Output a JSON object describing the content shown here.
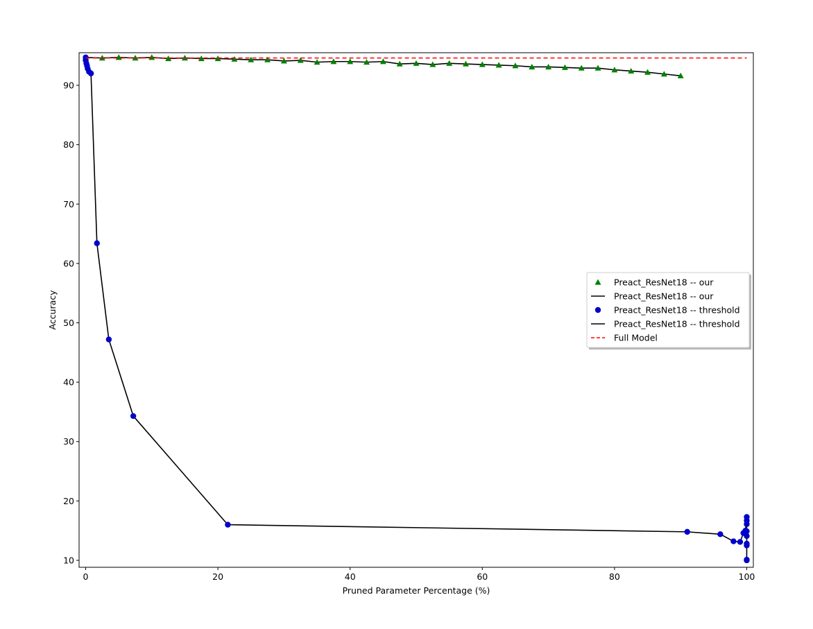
{
  "chart_data": {
    "type": "line",
    "xlabel": "Pruned Parameter Percentage (%)",
    "ylabel": "Accuracy",
    "xlim": [
      -1,
      101
    ],
    "ylim": [
      8.83,
      95.49
    ],
    "xticks": [
      0,
      20,
      40,
      60,
      80,
      100
    ],
    "yticks": [
      10,
      20,
      30,
      40,
      50,
      60,
      70,
      80,
      90
    ],
    "grid": false,
    "legend": "center right",
    "series": [
      {
        "name": "Preact_ResNet18 -- our",
        "color": "#008000",
        "marker": "triangle",
        "line_name": "Preact_ResNet18 -- our",
        "line_color": "#000000",
        "x": [
          0,
          2.5,
          5,
          7.5,
          10,
          12.5,
          15,
          17.5,
          20,
          22.5,
          25,
          27.5,
          30,
          32.5,
          35,
          37.5,
          40,
          42.5,
          45,
          47.5,
          50,
          52.5,
          55,
          57.5,
          60,
          62.5,
          65,
          67.5,
          70,
          72.5,
          75,
          77.5,
          80,
          82.5,
          85,
          87.5,
          90
        ],
        "values": [
          94.7,
          94.6,
          94.7,
          94.6,
          94.7,
          94.5,
          94.6,
          94.5,
          94.5,
          94.4,
          94.3,
          94.3,
          94.1,
          94.2,
          93.9,
          94.0,
          94.0,
          93.9,
          94.0,
          93.6,
          93.7,
          93.5,
          93.7,
          93.6,
          93.5,
          93.4,
          93.3,
          93.1,
          93.1,
          93.0,
          92.9,
          92.9,
          92.6,
          92.4,
          92.2,
          91.9,
          91.6
        ]
      },
      {
        "name": "Preact_ResNet18 -- threshold",
        "color": "#0000cc",
        "marker": "circle",
        "line_name": "Preact_ResNet18 -- threshold",
        "line_color": "#000000",
        "x": [
          0,
          0,
          0.1,
          0.2,
          0.3,
          0.5,
          0.8,
          1.7,
          3.5,
          7.2,
          21.5,
          91,
          96,
          98,
          99,
          99.5,
          99.8,
          100,
          100,
          100,
          100,
          100,
          100,
          100,
          100,
          100
        ],
        "values": [
          94.7,
          94.2,
          93.7,
          93.3,
          92.8,
          92.3,
          92.0,
          63.4,
          47.2,
          34.3,
          16.0,
          14.8,
          14.4,
          13.2,
          13.1,
          14.6,
          15.0,
          17.3,
          16.7,
          16.1,
          14.9,
          14.1,
          12.8,
          12.5,
          10.1,
          10.0
        ]
      },
      {
        "name": "Full Model",
        "color": "#ff0000",
        "marker": "none",
        "dashed": true,
        "x": [
          0,
          100
        ],
        "values": [
          94.6,
          94.6
        ]
      }
    ]
  }
}
